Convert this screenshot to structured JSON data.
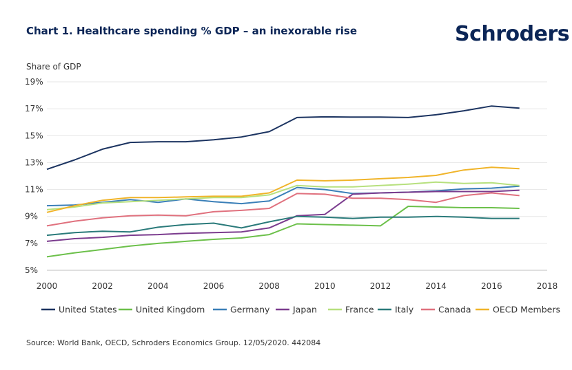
{
  "header": {
    "title": "Chart 1. Healthcare spending % GDP – an inexorable rise",
    "logo_text": "Schroders"
  },
  "footer": {
    "source": "Source: World Bank, OECD, Schroders Economics Group. 12/05/2020. 442084"
  },
  "chart_data": {
    "type": "line",
    "title": "Chart 1. Healthcare spending % GDP – an inexorable rise",
    "ylabel": "Share of GDP",
    "xlabel": "",
    "xlim": [
      2000,
      2018
    ],
    "ylim": [
      5,
      19
    ],
    "x_ticks": [
      2000,
      2002,
      2004,
      2006,
      2008,
      2010,
      2012,
      2014,
      2016,
      2018
    ],
    "y_ticks": [
      5,
      7,
      9,
      11,
      13,
      15,
      17,
      19
    ],
    "y_tick_labels": [
      "5%",
      "7%",
      "9%",
      "11%",
      "13%",
      "15%",
      "17%",
      "19%"
    ],
    "grid": "horizontal",
    "legend_position": "bottom",
    "x": [
      2000,
      2001,
      2002,
      2003,
      2004,
      2005,
      2006,
      2007,
      2008,
      2009,
      2010,
      2011,
      2012,
      2013,
      2014,
      2015,
      2016,
      2017
    ],
    "series": [
      {
        "name": "United States",
        "color": "#1c3461",
        "values": [
          12.5,
          13.2,
          14.0,
          14.5,
          14.55,
          14.55,
          14.7,
          14.9,
          15.3,
          16.35,
          16.4,
          16.38,
          16.38,
          16.35,
          16.55,
          16.85,
          17.2,
          17.05
        ]
      },
      {
        "name": "United Kingdom",
        "color": "#6cc04a",
        "values": [
          6.0,
          6.3,
          6.55,
          6.8,
          7.0,
          7.15,
          7.3,
          7.4,
          7.65,
          8.45,
          8.4,
          8.35,
          8.3,
          9.75,
          9.7,
          9.65,
          9.65,
          9.6
        ]
      },
      {
        "name": "Germany",
        "color": "#3a7fb8",
        "values": [
          9.8,
          9.85,
          10.05,
          10.25,
          10.05,
          10.3,
          10.1,
          9.95,
          10.15,
          11.15,
          11.0,
          10.7,
          10.75,
          10.8,
          10.9,
          11.05,
          11.1,
          11.25
        ]
      },
      {
        "name": "Japan",
        "color": "#7b3c8e",
        "values": [
          7.15,
          7.35,
          7.45,
          7.6,
          7.65,
          7.75,
          7.8,
          7.85,
          8.15,
          9.05,
          9.15,
          10.65,
          10.75,
          10.8,
          10.85,
          10.85,
          10.85,
          10.95
        ]
      },
      {
        "name": "France",
        "color": "#b7e07e",
        "values": [
          9.5,
          9.7,
          10.0,
          10.1,
          10.2,
          10.3,
          10.4,
          10.4,
          10.6,
          11.3,
          11.2,
          11.2,
          11.3,
          11.4,
          11.55,
          11.45,
          11.5,
          11.3
        ]
      },
      {
        "name": "Italy",
        "color": "#2a7a7a",
        "values": [
          7.6,
          7.8,
          7.9,
          7.85,
          8.2,
          8.4,
          8.5,
          8.15,
          8.6,
          9.0,
          8.95,
          8.85,
          8.95,
          8.95,
          9.0,
          8.95,
          8.85,
          8.85
        ]
      },
      {
        "name": "Canada",
        "color": "#e0717e",
        "values": [
          8.3,
          8.65,
          8.9,
          9.05,
          9.1,
          9.05,
          9.35,
          9.45,
          9.6,
          10.7,
          10.65,
          10.35,
          10.35,
          10.25,
          10.05,
          10.55,
          10.75,
          10.55
        ]
      },
      {
        "name": "OECD Members",
        "color": "#f0b429",
        "values": [
          9.3,
          9.8,
          10.2,
          10.4,
          10.4,
          10.45,
          10.5,
          10.5,
          10.75,
          11.7,
          11.65,
          11.7,
          11.8,
          11.9,
          12.05,
          12.45,
          12.65,
          12.55
        ]
      }
    ]
  }
}
